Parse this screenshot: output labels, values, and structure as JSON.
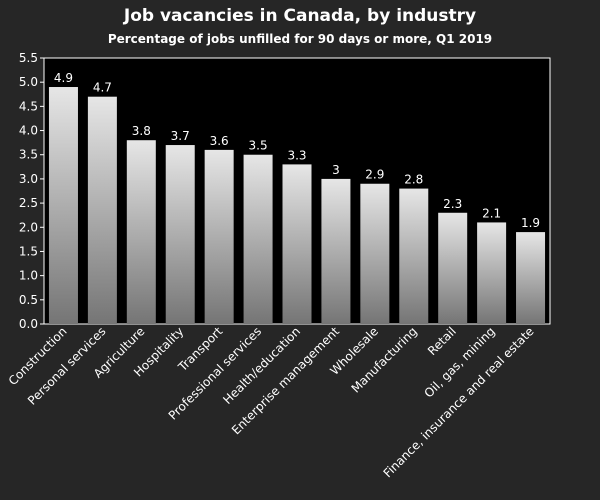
{
  "chart_data": {
    "type": "bar",
    "title": "Job vacancies in Canada, by industry",
    "subtitle": "Percentage of jobs unfilled for 90 days or more, Q1 2019",
    "xlabel": "",
    "ylabel": "",
    "ylim": [
      0,
      5.5
    ],
    "yticks": [
      "0.0",
      "0.5",
      "1.0",
      "1.5",
      "2.0",
      "2.5",
      "3.0",
      "3.5",
      "4.0",
      "4.5",
      "5.0",
      "5.5"
    ],
    "categories": [
      "Construction",
      "Personal services",
      "Agriculture",
      "Hospitality",
      "Transport",
      "Professional services",
      "Health/education",
      "Enterprise management",
      "Wholesale",
      "Manufacturing",
      "Retail",
      "Oil, gas, mining",
      "Finance, insurance and real estate"
    ],
    "values": [
      4.9,
      4.7,
      3.8,
      3.7,
      3.6,
      3.5,
      3.3,
      3,
      2.9,
      2.8,
      2.3,
      2.1,
      1.9
    ],
    "value_labels": [
      "4.9",
      "4.7",
      "3.8",
      "3.7",
      "3.6",
      "3.5",
      "3.3",
      "3",
      "2.9",
      "2.8",
      "2.3",
      "2.1",
      "1.9"
    ],
    "grid": false,
    "legend": "none",
    "colors": {
      "background": "#262626",
      "plot_background": "#000000",
      "bar_top": "#e6e6e6",
      "bar_bottom": "#757575",
      "text": "#ffffff"
    }
  }
}
